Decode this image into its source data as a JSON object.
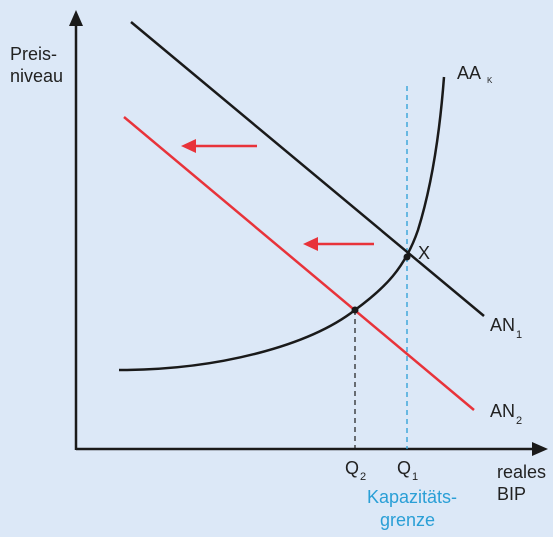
{
  "axes": {
    "y_label_line1": "Preis-",
    "y_label_line2": "niveau",
    "x_label_line1": "reales",
    "x_label_line2": "BIP"
  },
  "curves": {
    "supply": {
      "name": "AA",
      "subscript": "K",
      "color": "#1a1a1a"
    },
    "demand1": {
      "name": "AN",
      "subscript": "1",
      "color": "#1a1a1a"
    },
    "demand2": {
      "name": "AN",
      "subscript": "2",
      "color": "#e8333a"
    }
  },
  "points": {
    "equilibrium_label": "X"
  },
  "quantities": {
    "q2_name": "Q",
    "q2_sub": "2",
    "q1_name": "Q",
    "q1_sub": "1"
  },
  "capacity": {
    "line1": "Kapazitäts-",
    "line2": "grenze",
    "color": "#2a9fd6"
  },
  "shift_arrows_color": "#e8333a",
  "background_color": "#dce8f7"
}
